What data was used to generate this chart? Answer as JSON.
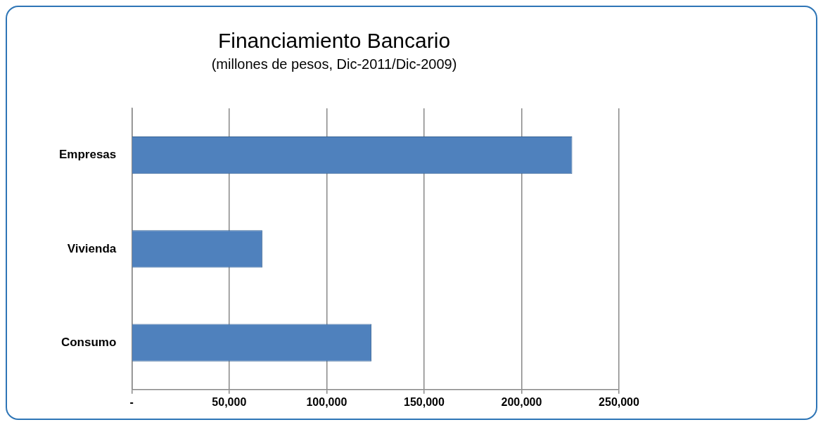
{
  "chart_data": {
    "type": "bar",
    "orientation": "horizontal",
    "title": "Financiamiento Bancario",
    "subtitle": "(millones de pesos, Dic-2011/Dic-2009)",
    "categories": [
      "Empresas",
      "Vivienda",
      "Consumo"
    ],
    "values": [
      226000,
      67000,
      123000
    ],
    "color": "#4f81bd",
    "xlim": [
      0,
      250000
    ],
    "xticks": [
      {
        "value": 0,
        "label": "-"
      },
      {
        "value": 50000,
        "label": "50,000"
      },
      {
        "value": 100000,
        "label": "100,000"
      },
      {
        "value": 150000,
        "label": "150,000"
      },
      {
        "value": 200000,
        "label": "200,000"
      },
      {
        "value": 250000,
        "label": "250,000"
      }
    ],
    "grid": "x",
    "legend": false
  }
}
